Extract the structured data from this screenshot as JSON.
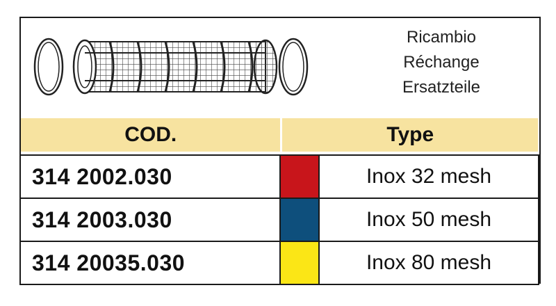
{
  "header_names": [
    "Ricambio",
    "Réchange",
    "Ersatzteile"
  ],
  "columns": {
    "cod": "COD.",
    "type": "Type"
  },
  "rows": [
    {
      "code": "314 2002.030",
      "type": "Inox 32 mesh",
      "color": "#c8151b"
    },
    {
      "code": "314 2003.030",
      "type": "Inox 50 mesh",
      "color": "#0e4f7c"
    },
    {
      "code": "314 20035.030",
      "type": "Inox 80 mesh",
      "color": "#fbe616"
    }
  ],
  "colors": {
    "header_band": "#f7e3a0",
    "frame": "#1a1a1a"
  },
  "illustration": "cylindrical-mesh-filter-with-o-rings"
}
